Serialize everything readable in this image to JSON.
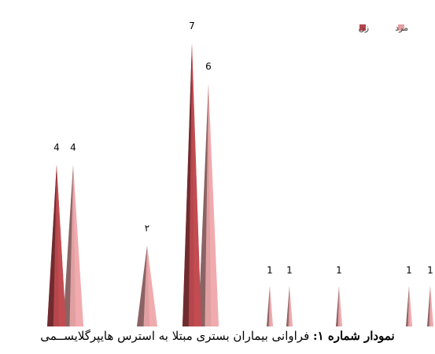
{
  "chart_data": {
    "type": "bar",
    "style": "cone",
    "grid": false,
    "legend_position": "top-right",
    "ylim": [
      0,
      7.3
    ],
    "series": [
      {
        "name": "زن",
        "color": "#b5474c",
        "values": [
          4,
          null,
          null,
          7,
          null,
          null,
          null,
          null,
          null
        ],
        "labels": [
          "4",
          "",
          "",
          "7",
          "",
          "",
          "",
          "",
          ""
        ]
      },
      {
        "name": "مرد",
        "color": "#e0a0a2",
        "values": [
          4,
          2,
          null,
          6,
          1,
          1,
          1,
          1,
          1
        ],
        "labels": [
          "4",
          "۲",
          "",
          "6",
          "1",
          "1",
          "1",
          "1",
          "1"
        ]
      }
    ]
  },
  "caption": {
    "prefix": "نمودار شماره ۱:",
    "text": " فراوانی بیماران بستری مبتلا به استرس هایپرگلایســمی"
  }
}
